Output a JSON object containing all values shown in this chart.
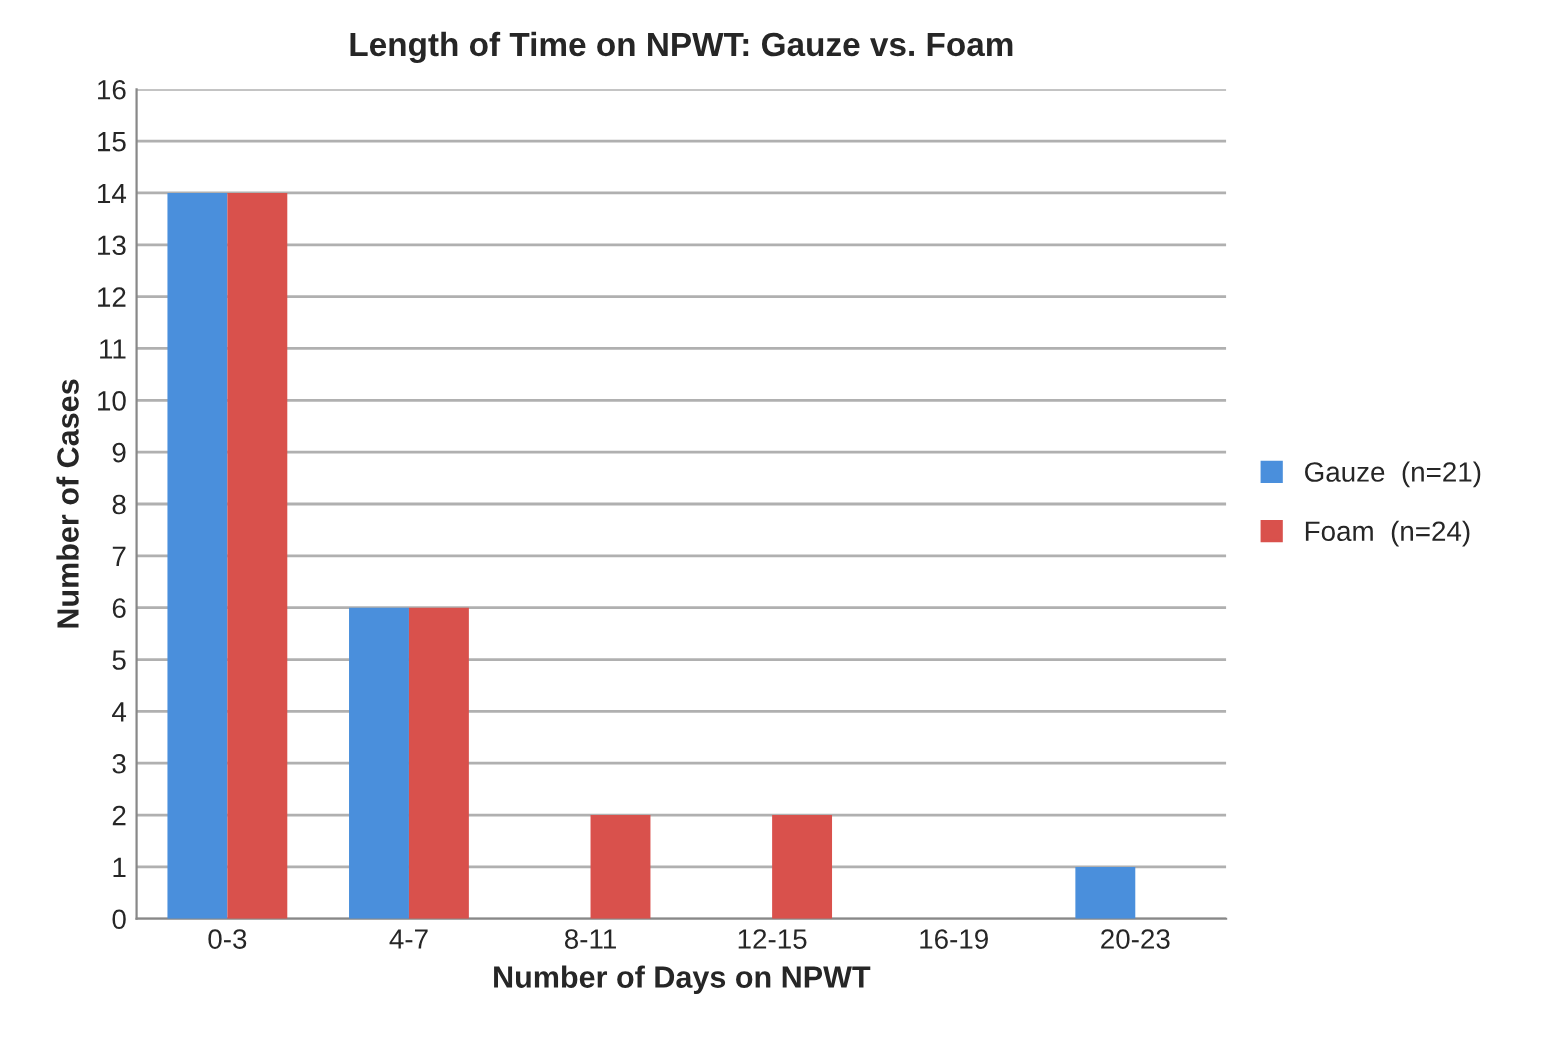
{
  "chart_data": {
    "type": "bar",
    "title": "Length of Time on NPWT: Gauze vs. Foam",
    "xlabel": "Number of Days on NPWT",
    "ylabel": "Number of Cases",
    "categories": [
      "0-3",
      "4-7",
      "8-11",
      "12-15",
      "16-19",
      "20-23"
    ],
    "series": [
      {
        "name": "Gauze  (n=21)",
        "color": "#4a8fdc",
        "values": [
          14,
          6,
          0,
          0,
          0,
          1
        ]
      },
      {
        "name": "Foam  (n=24)",
        "color": "#d9514c",
        "values": [
          14,
          6,
          2,
          2,
          0,
          0
        ]
      }
    ],
    "ylim": [
      0,
      16
    ],
    "yticks": [
      0,
      1,
      2,
      3,
      4,
      5,
      6,
      7,
      8,
      9,
      10,
      11,
      12,
      13,
      14,
      15,
      16
    ],
    "grid": "y",
    "legend": "right"
  }
}
